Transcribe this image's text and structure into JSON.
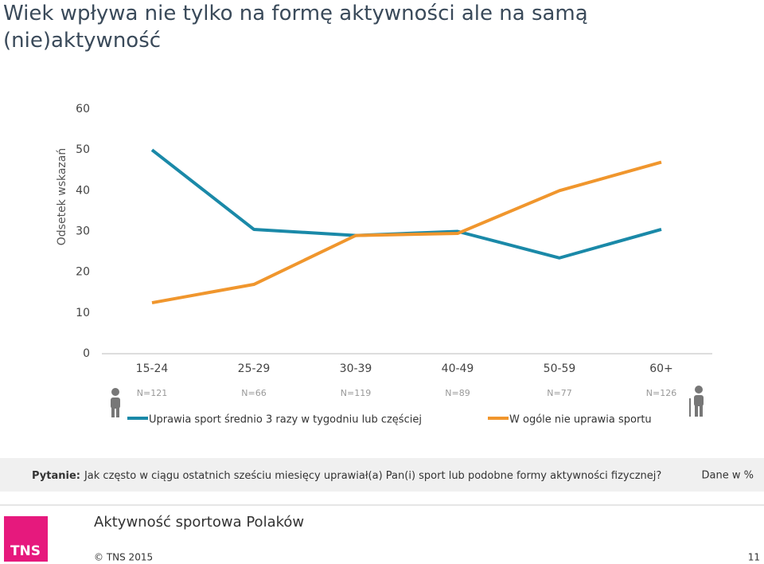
{
  "chart_data": {
    "type": "line",
    "title": "Wiek wpływa nie tylko na formę aktywności ale na samą (nie)aktywność",
    "y_label": "Odsetek wskazań",
    "categories": [
      "15-24",
      "25-29",
      "30-39",
      "40-49",
      "50-59",
      "60+"
    ],
    "n_labels": [
      "N=121",
      "N=66",
      "N=119",
      "N=89",
      "N=77",
      "N=126"
    ],
    "series": [
      {
        "name": "Uprawia sport średnio 3 razy w tygodniu lub częściej",
        "color": "#1a89a8",
        "values": [
          50,
          30.5,
          29,
          30,
          23.5,
          30.5
        ]
      },
      {
        "name": "W ogóle nie uprawia sportu",
        "color": "#f0962d",
        "values": [
          12.5,
          17,
          29,
          29.5,
          40,
          47
        ]
      }
    ],
    "ylim": [
      0,
      60
    ],
    "yticks": [
      0,
      10,
      20,
      30,
      40,
      50,
      60
    ],
    "grid": false
  },
  "question_label": "Pytanie:",
  "question": "Jak często w ciągu ostatnich sześciu miesięcy uprawiał(a) Pan(i) sport lub podobne formy aktywności fizycznej?",
  "data_note": "Dane w %",
  "footer": {
    "logo": "TNS",
    "title": "Aktywność sportowa Polaków",
    "copyright": "© TNS 2015",
    "page": "11"
  }
}
